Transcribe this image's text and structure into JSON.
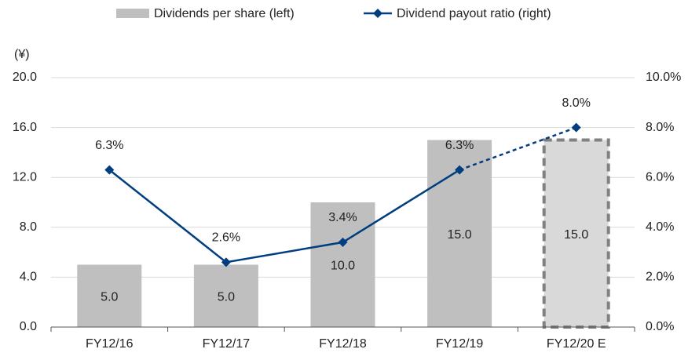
{
  "chart_data": {
    "type": "bar_line",
    "unit_label": "(¥)",
    "categories": [
      "FY12/16",
      "FY12/17",
      "FY12/18",
      "FY12/19",
      "FY12/20 E"
    ],
    "estimated": [
      false,
      false,
      false,
      false,
      true
    ],
    "series": [
      {
        "name": "Dividends per share (left)",
        "type": "bar",
        "axis": "y",
        "color": "#bfbfbf",
        "estimate_color": "#d9d9d9",
        "estimate_border": "#808080",
        "values": [
          5,
          5,
          10,
          15,
          15
        ],
        "value_labels": [
          "5.0",
          "5.0",
          "10.0",
          "15.0",
          "15.0"
        ]
      },
      {
        "name": "Dividend payout ratio (right)",
        "type": "line",
        "axis": "y2",
        "color": "#003e80",
        "values": [
          6.3,
          2.6,
          3.4,
          6.3,
          8.0
        ],
        "value_labels": [
          "6.3%",
          "2.6%",
          "3.4%",
          "6.3%",
          "8.0%"
        ]
      }
    ],
    "ylim": [
      0,
      20
    ],
    "yticks": [
      {
        "value": 0,
        "label": "0.0"
      },
      {
        "value": 4,
        "label": "4.0"
      },
      {
        "value": 8,
        "label": "8.0"
      },
      {
        "value": 12,
        "label": "12.0"
      },
      {
        "value": 16,
        "label": "16.0"
      },
      {
        "value": 20,
        "label": "20.0"
      }
    ],
    "y2lim": [
      0,
      10
    ],
    "y2ticks": [
      {
        "value": 0,
        "label": "0.0%"
      },
      {
        "value": 2,
        "label": "2.0%"
      },
      {
        "value": 4,
        "label": "4.0%"
      },
      {
        "value": 6,
        "label": "6.0%"
      },
      {
        "value": 8,
        "label": "8.0%"
      },
      {
        "value": 10,
        "label": "10.0%"
      }
    ],
    "grid": true,
    "legend": "top"
  }
}
